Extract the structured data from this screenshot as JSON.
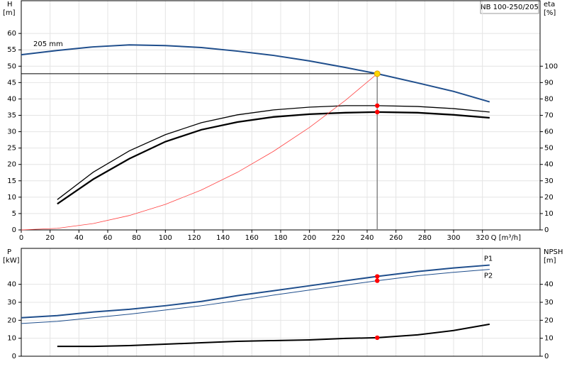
{
  "chart_data": [
    {
      "type": "line",
      "title": "NB 100-250/205",
      "annotation": "205 mm",
      "ylabel": "H",
      "yunit": "[m]",
      "y2label": "eta",
      "y2unit": "[%]",
      "xlabel": "Q [m³/h]",
      "x": [
        0,
        25,
        50,
        75,
        100,
        125,
        150,
        175,
        200,
        225,
        247,
        275,
        300,
        325
      ],
      "xlim": [
        0,
        360
      ],
      "xticks": [
        0,
        20,
        40,
        60,
        80,
        100,
        120,
        140,
        160,
        180,
        200,
        220,
        240,
        260,
        280,
        300,
        320
      ],
      "ylim": [
        0,
        70
      ],
      "yticks": [
        0,
        5,
        10,
        15,
        20,
        25,
        30,
        35,
        40,
        45,
        50,
        55,
        60
      ],
      "y2lim": [
        0,
        140
      ],
      "y2ticks": [
        0,
        10,
        20,
        30,
        40,
        50,
        60,
        70,
        80,
        90,
        100
      ],
      "grid": true,
      "series": [
        {
          "color": "#1f4e8c",
          "width": 2,
          "values": [
            53.5,
            54.8,
            55.9,
            56.5,
            56.3,
            55.7,
            54.6,
            53.3,
            51.6,
            49.6,
            47.7,
            44.9,
            42.3,
            39.1
          ]
        },
        {
          "color": "#000000",
          "width": 1.3,
          "axis": "y2",
          "values": [
            null,
            18.5,
            35.3,
            48.3,
            58.2,
            65.5,
            70.3,
            73.3,
            75,
            75.9,
            75.9,
            75.4,
            74.1,
            72
          ]
        },
        {
          "color": "#000000",
          "width": 2.3,
          "axis": "y2",
          "values": [
            null,
            15.9,
            31,
            43.5,
            53.9,
            61.2,
            65.9,
            69,
            70.7,
            71.6,
            72,
            71.6,
            70.3,
            68.5
          ]
        },
        {
          "color": "#ff4040",
          "width": 0.8,
          "values": [
            0,
            0.49,
            1.95,
            4.4,
            7.8,
            12.2,
            17.6,
            24,
            31.3,
            39.6,
            47.7,
            null,
            null,
            null
          ]
        }
      ],
      "operating_point": {
        "x": 247,
        "y": 47.7,
        "color": "#ffd700"
      },
      "markers": [
        {
          "x": 247,
          "y": 75.9,
          "axis": "y2",
          "color": "#ff0000"
        },
        {
          "x": 247,
          "y": 72,
          "axis": "y2",
          "color": "#ff0000"
        }
      ]
    },
    {
      "type": "line",
      "ylabel": "P",
      "yunit": "[kW]",
      "y2label": "NPSH",
      "y2unit": "[m]",
      "x": [
        0,
        25,
        50,
        75,
        100,
        125,
        150,
        175,
        200,
        225,
        247,
        275,
        300,
        325
      ],
      "xlim": [
        0,
        360
      ],
      "ylim": [
        0,
        60
      ],
      "yticks": [
        0,
        10,
        20,
        30,
        40
      ],
      "y2lim": [
        0,
        60
      ],
      "y2ticks": [
        0,
        10,
        20,
        30,
        40
      ],
      "grid": true,
      "series": [
        {
          "name": "P1",
          "color": "#1f4e8c",
          "width": 2,
          "values": [
            21.4,
            22.6,
            24.6,
            26.1,
            28.1,
            30.5,
            33.7,
            36.4,
            39.2,
            42,
            44.4,
            47.1,
            49.1,
            50.7
          ]
        },
        {
          "name": "P2",
          "color": "#1f4e8c",
          "width": 1,
          "values": [
            18.2,
            19.4,
            21.4,
            23.4,
            25.7,
            28.1,
            30.9,
            34,
            36.8,
            39.6,
            42,
            44.8,
            46.7,
            48.3
          ]
        },
        {
          "color": "#000000",
          "width": 2,
          "axis": "y2",
          "values": [
            null,
            5.5,
            5.5,
            5.9,
            6.7,
            7.5,
            8.3,
            8.7,
            9.1,
            9.9,
            10.3,
            11.9,
            14.3,
            17.8
          ]
        }
      ],
      "markers": [
        {
          "x": 247,
          "y": 44.4,
          "color": "#ff0000"
        },
        {
          "x": 247,
          "y": 42,
          "color": "#ff0000"
        },
        {
          "x": 247,
          "y": 10.3,
          "axis": "y2",
          "color": "#ff0000"
        }
      ]
    }
  ]
}
